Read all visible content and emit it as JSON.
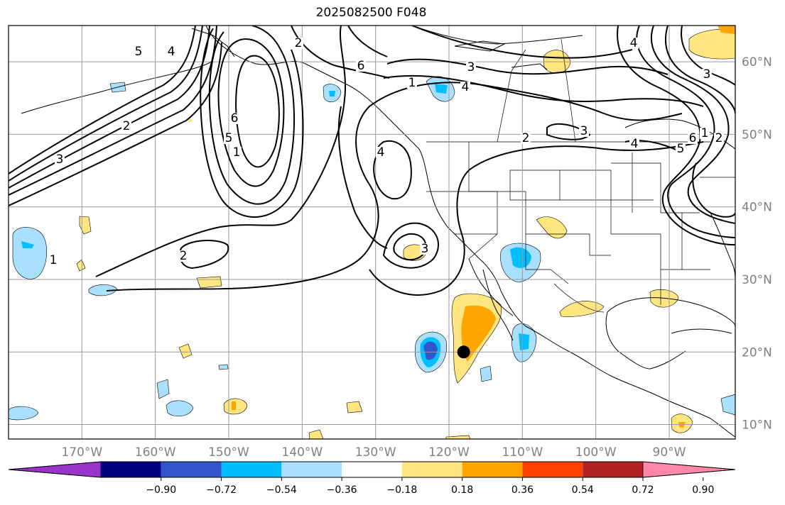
{
  "title": "2025082500 F048",
  "map": {
    "lon_range": [
      -180,
      -81
    ],
    "lat_range": [
      8,
      65
    ],
    "lon_ticks": [
      "170°W",
      "160°W",
      "150°W",
      "140°W",
      "130°W",
      "120°W",
      "110°W",
      "100°W",
      "90°W"
    ],
    "lon_tick_values": [
      -170,
      -160,
      -150,
      -140,
      -130,
      -120,
      -110,
      -100,
      -90
    ],
    "lat_ticks": [
      "10°N",
      "20°N",
      "30°N",
      "40°N",
      "50°N",
      "60°N"
    ],
    "lat_tick_values": [
      10,
      20,
      30,
      40,
      50,
      60
    ],
    "gridlines": true,
    "contour_labels": [
      "1",
      "2",
      "3",
      "4",
      "5",
      "6",
      "1",
      "2",
      "3",
      "4",
      "5",
      "6",
      "2",
      "3",
      "4",
      "1",
      "2",
      "3",
      "4",
      "5",
      "6",
      "1",
      "2",
      "3",
      "4"
    ],
    "marker": {
      "lon": -118,
      "lat": 20,
      "color": "#000000"
    }
  },
  "colorbar": {
    "orientation": "horizontal",
    "extend": "both",
    "colors": [
      "#9933cc",
      "#000080",
      "#3355cc",
      "#00bfff",
      "#aae0ff",
      "#ffffff",
      "#ffe680",
      "#ffa500",
      "#ff4000",
      "#b22222",
      "#ff88aa"
    ],
    "labels": [
      "−0.90",
      "−0.72",
      "−0.54",
      "−0.36",
      "−0.18",
      "0.18",
      "0.36",
      "0.54",
      "0.72",
      "0.90"
    ]
  }
}
